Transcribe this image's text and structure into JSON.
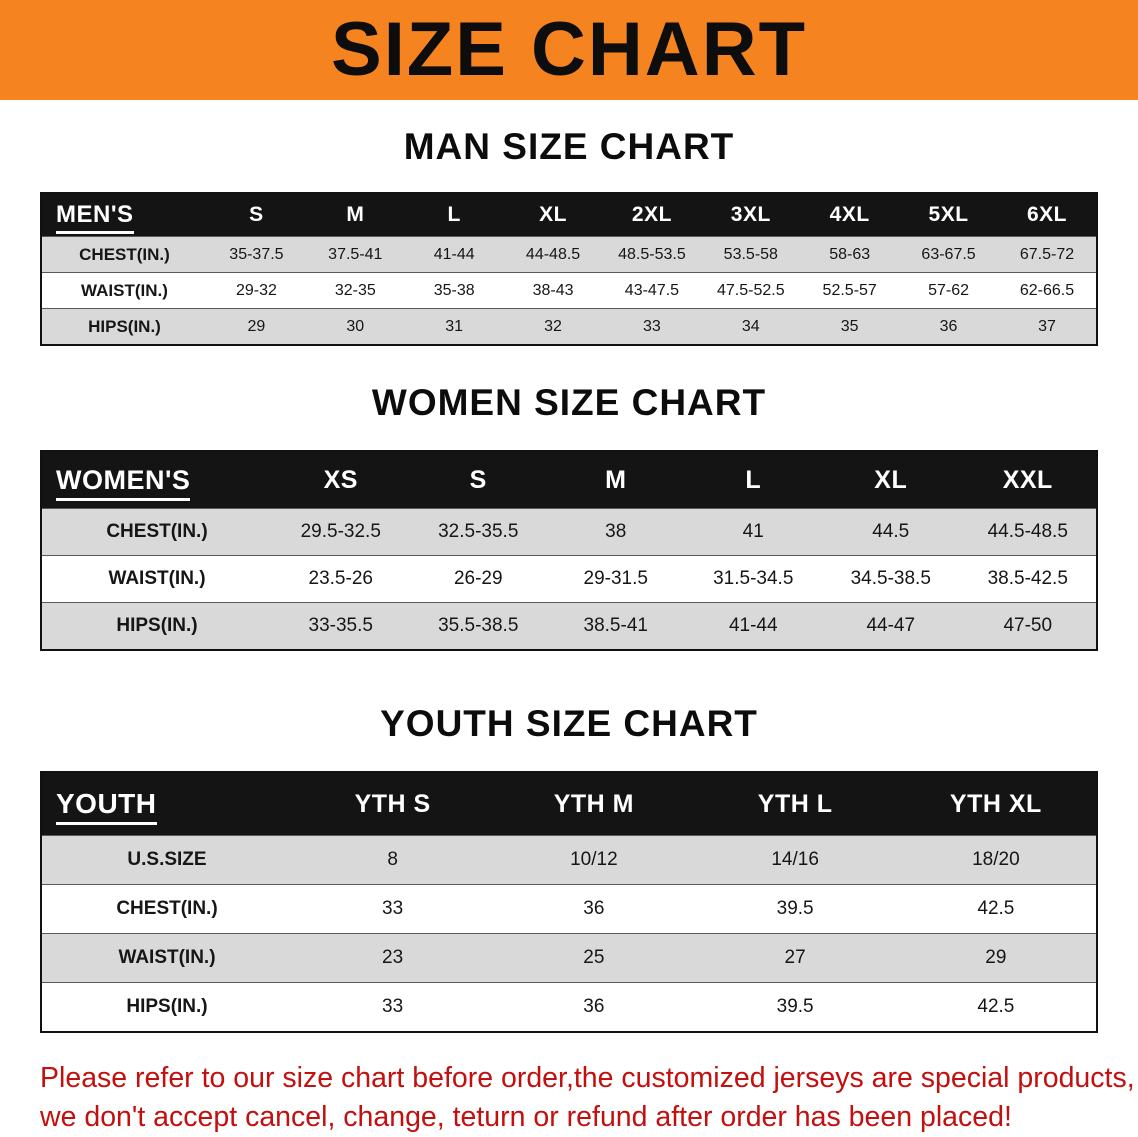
{
  "banner": {
    "title": "SIZE CHART"
  },
  "colors": {
    "banner-orange": "#f5831f",
    "table-header-black": "#141414",
    "row-gray": "#d9d9d9",
    "disclaimer-red": "#c40f0f"
  },
  "sections": [
    {
      "id": "men",
      "heading": "MAN SIZE CHART",
      "table": {
        "header": [
          "MEN'S",
          "S",
          "M",
          "L",
          "XL",
          "2XL",
          "3XL",
          "4XL",
          "5XL",
          "6XL"
        ],
        "rows": [
          [
            "CHEST(IN.)",
            "35-37.5",
            "37.5-41",
            "41-44",
            "44-48.5",
            "48.5-53.5",
            "53.5-58",
            "58-63",
            "63-67.5",
            "67.5-72"
          ],
          [
            "WAIST(IN.)",
            "29-32",
            "32-35",
            "35-38",
            "38-43",
            "43-47.5",
            "47.5-52.5",
            "52.5-57",
            "57-62",
            "62-66.5"
          ],
          [
            "HIPS(IN.)",
            "29",
            "30",
            "31",
            "32",
            "33",
            "34",
            "35",
            "36",
            "37"
          ]
        ]
      }
    },
    {
      "id": "women",
      "heading": "WOMEN SIZE CHART",
      "table": {
        "header": [
          "WOMEN'S",
          "XS",
          "S",
          "M",
          "L",
          "XL",
          "XXL"
        ],
        "rows": [
          [
            "CHEST(IN.)",
            "29.5-32.5",
            "32.5-35.5",
            "38",
            "41",
            "44.5",
            "44.5-48.5"
          ],
          [
            "WAIST(IN.)",
            "23.5-26",
            "26-29",
            "29-31.5",
            "31.5-34.5",
            "34.5-38.5",
            "38.5-42.5"
          ],
          [
            "HIPS(IN.)",
            "33-35.5",
            "35.5-38.5",
            "38.5-41",
            "41-44",
            "44-47",
            "47-50"
          ]
        ]
      }
    },
    {
      "id": "youth",
      "heading": "YOUTH SIZE CHART",
      "table": {
        "header": [
          "YOUTH",
          "YTH S",
          "YTH M",
          "YTH L",
          "YTH XL"
        ],
        "rows": [
          [
            "U.S.SIZE",
            "8",
            "10/12",
            "14/16",
            "18/20"
          ],
          [
            "CHEST(IN.)",
            "33",
            "36",
            "39.5",
            "42.5"
          ],
          [
            "WAIST(IN.)",
            "23",
            "25",
            "27",
            "29"
          ],
          [
            "HIPS(IN.)",
            "33",
            "36",
            "39.5",
            "42.5"
          ]
        ]
      }
    }
  ],
  "disclaimer": {
    "line1": "Please refer to our size chart before order,the customized jerseys are special products,",
    "line2": "we don't accept cancel, change, teturn or refund after order has been placed!"
  }
}
